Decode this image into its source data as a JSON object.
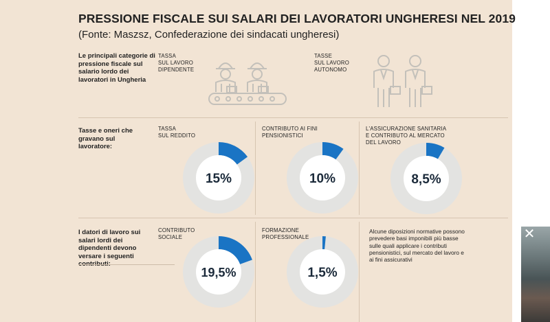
{
  "title": "PRESSIONE FISCALE SUI SALARI DEI LAVORATORI UNGHERESI NEL 2019",
  "subtitle": "(Fonte: Maszsz, Confederazione dei sindacati ungheresi)",
  "intro": {
    "label": "Le principali categorie di pressione fiscale sul salario lordo dei lavoratori in Ungheria",
    "cat1": [
      "TASSA",
      "SUL LAVORO",
      "DIPENDENTE"
    ],
    "cat2": [
      "TASSE",
      "SUL LAVORO",
      "AUTONOMO"
    ]
  },
  "row1": {
    "label": "Tasse e oneri che gravano sul lavoratore:",
    "items": [
      {
        "label": [
          "TASSA",
          "SUL REDDITO"
        ],
        "value_text": "15%"
      },
      {
        "label": [
          "CONTRIBUTO AI FINI",
          "PENSIONISTICI"
        ],
        "value_text": "10%"
      },
      {
        "label": [
          "L'ASSICURAZIONE SANITARIA",
          "E CONTRIBUTO AL MERCATO",
          "DEL LAVORO"
        ],
        "value_text": "8,5%"
      }
    ]
  },
  "row2": {
    "label": "I datori di lavoro sui salari lordi dei dipendenti devono versare i seguenti contributi:",
    "items": [
      {
        "label": [
          "CONTRIBUTO",
          "SOCIALE"
        ],
        "value_text": "19,5%"
      },
      {
        "label": [
          "FORMAZIONE",
          "PROFESSIONALE"
        ],
        "value_text": "1,5%"
      }
    ],
    "note": "Alcune diposizioni normative possono prevedere basi imponibili più basse sulle quali applicare i contributi pensionistici, sul mercato del lavoro e ai fini assicurativi"
  },
  "overlay": {
    "close_icon": "close-icon"
  },
  "colors": {
    "accent": "#1a74c4",
    "track": "#e3e3e1",
    "hole": "#ffffff",
    "background": "#f2e4d4"
  },
  "chart_data": [
    {
      "type": "pie",
      "title": "TASSA SUL REDDITO",
      "values": [
        15,
        85
      ],
      "categories": [
        "TASSA SUL REDDITO",
        ""
      ],
      "value_label": "15%"
    },
    {
      "type": "pie",
      "title": "CONTRIBUTO AI FINI PENSIONISTICI",
      "values": [
        10,
        90
      ],
      "categories": [
        "CONTRIBUTO AI FINI PENSIONISTICI",
        ""
      ],
      "value_label": "10%"
    },
    {
      "type": "pie",
      "title": "L'ASSICURAZIONE SANITARIA E CONTRIBUTO AL MERCATO DEL LAVORO",
      "values": [
        8.5,
        91.5
      ],
      "categories": [
        "L'ASSICURAZIONE SANITARIA E CONTRIBUTO AL MERCATO DEL LAVORO",
        ""
      ],
      "value_label": "8,5%"
    },
    {
      "type": "pie",
      "title": "CONTRIBUTO SOCIALE",
      "values": [
        19.5,
        80.5
      ],
      "categories": [
        "CONTRIBUTO SOCIALE",
        ""
      ],
      "value_label": "19,5%"
    },
    {
      "type": "pie",
      "title": "FORMAZIONE PROFESSIONALE",
      "values": [
        1.5,
        98.5
      ],
      "categories": [
        "FORMAZIONE PROFESSIONALE",
        ""
      ],
      "value_label": "1,5%"
    }
  ]
}
